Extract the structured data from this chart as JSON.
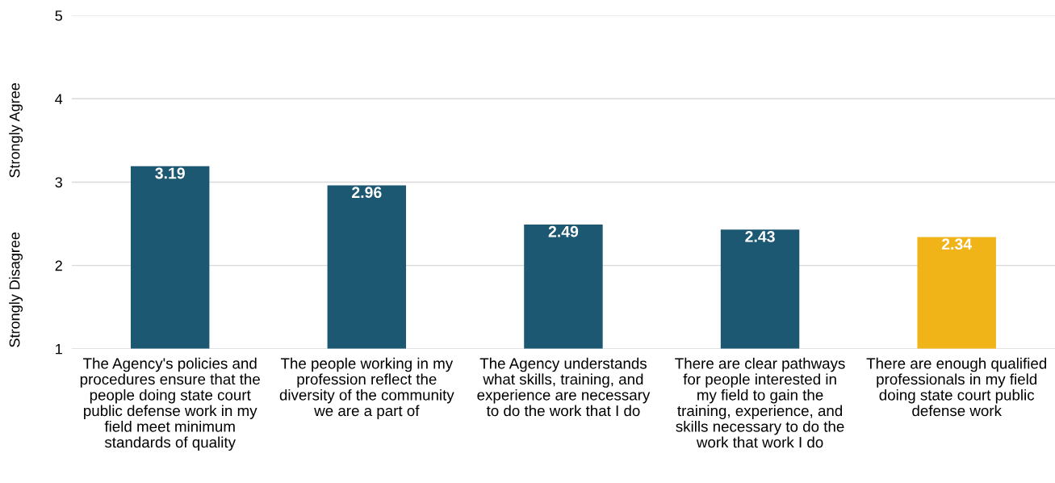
{
  "chart_data": {
    "type": "bar",
    "categories": [
      "The Agency's policies and procedures ensure that the people doing state court public defense work in my field meet minimum standards of quality",
      "The people working in my profession reflect the diversity of the community we are a part of",
      "The Agency understands what skills, training, and experience are necessary to do the work that I do",
      "There are clear pathways for people interested in my field to gain the training, experience, and skills necessary to do the work that work I do",
      "There are enough qualified professionals in my field doing state court public defense work"
    ],
    "values": [
      3.19,
      2.96,
      2.49,
      2.43,
      2.34
    ],
    "colors": [
      "#1d5872",
      "#1d5872",
      "#1d5872",
      "#1d5872",
      "#f0b418"
    ],
    "ylim": [
      1,
      5
    ],
    "yticks": [
      1,
      2,
      3,
      4,
      5
    ],
    "grid": "y",
    "data_labels": true,
    "annotations": [
      "Strongly Agree",
      "Strongly Disagree"
    ]
  }
}
